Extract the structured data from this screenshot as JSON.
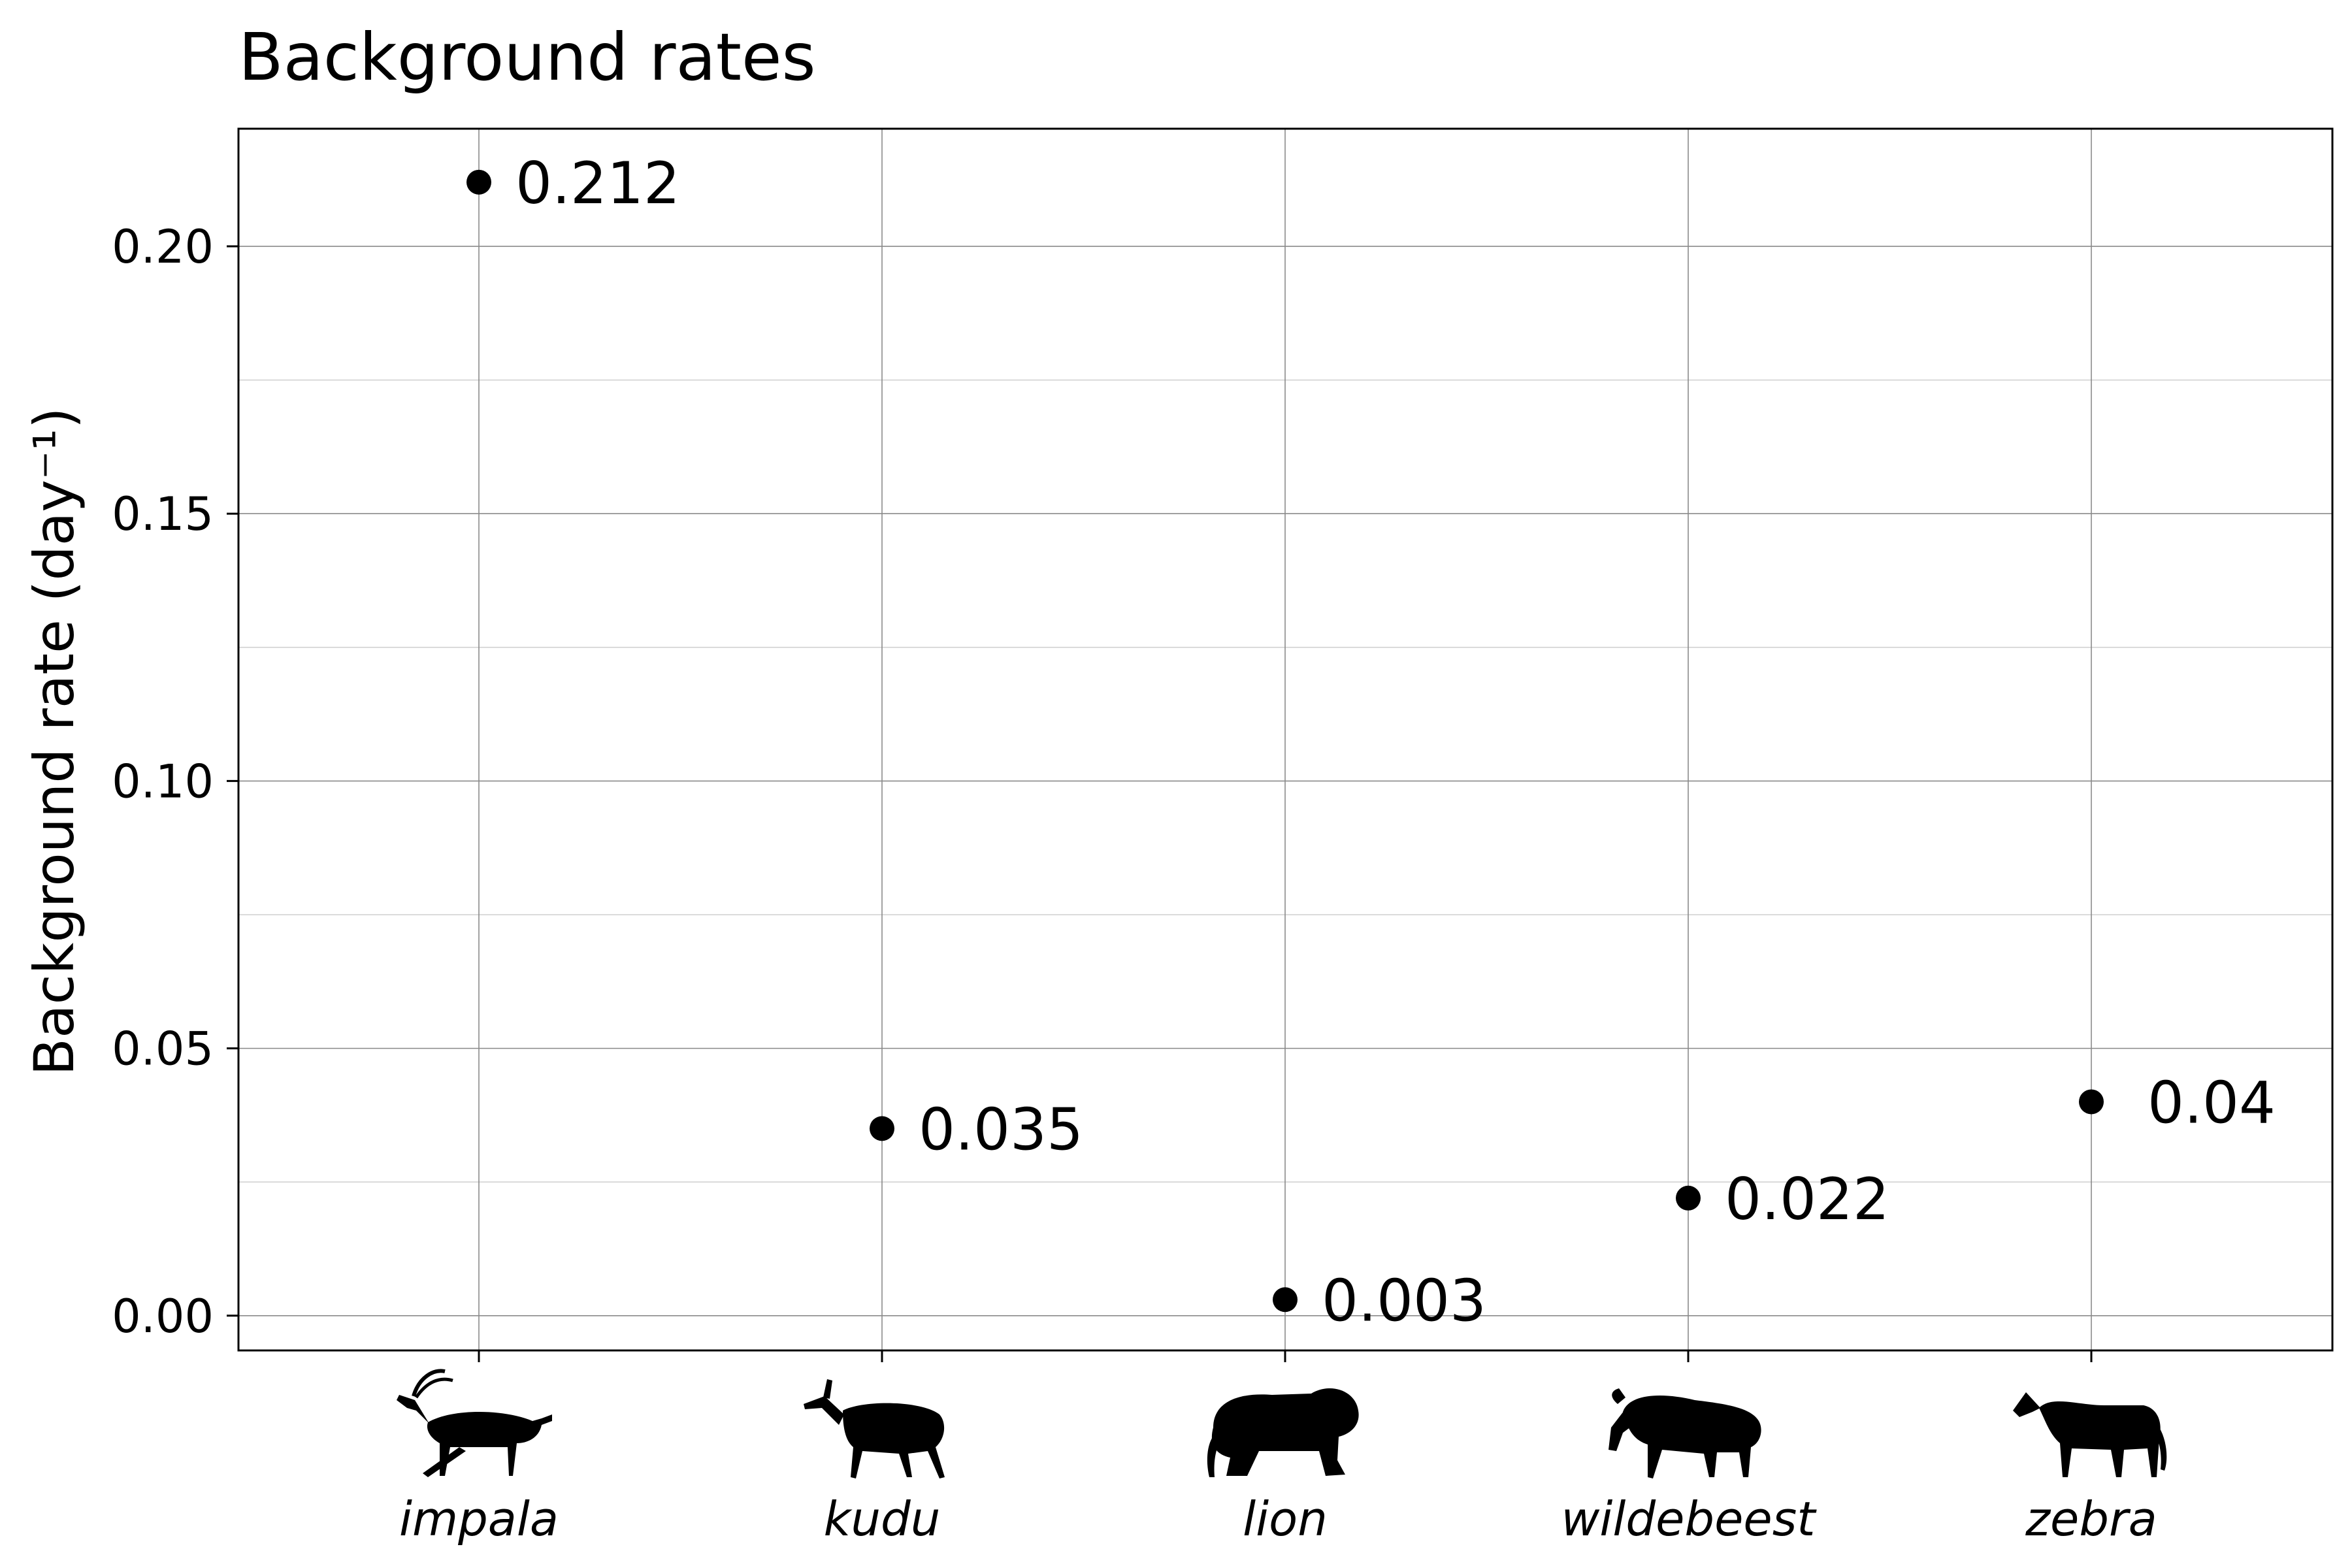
{
  "chart_data": {
    "type": "scatter",
    "title": "Background rates",
    "xlabel": "",
    "ylabel": "Background rate (day⁻¹)",
    "categories": [
      "impala",
      "kudu",
      "lion",
      "wildebeest",
      "zebra"
    ],
    "values": [
      0.212,
      0.035,
      0.003,
      0.022,
      0.04
    ],
    "data_labels": [
      "0.212",
      "0.035",
      "0.003",
      "0.022",
      "0.04"
    ],
    "ylim": [
      -0.0065,
      0.222
    ],
    "yticks": [
      0.0,
      0.05,
      0.1,
      0.15,
      0.2
    ],
    "ytick_labels": [
      "0.00",
      "0.05",
      "0.10",
      "0.15",
      "0.20"
    ],
    "minor_yticks": [
      0.025,
      0.075,
      0.125,
      0.175
    ],
    "grid": true,
    "category_icons": [
      "impala-silhouette",
      "kudu-silhouette",
      "lion-silhouette",
      "wildebeest-silhouette",
      "zebra-silhouette"
    ],
    "marker_color": "#000000"
  }
}
